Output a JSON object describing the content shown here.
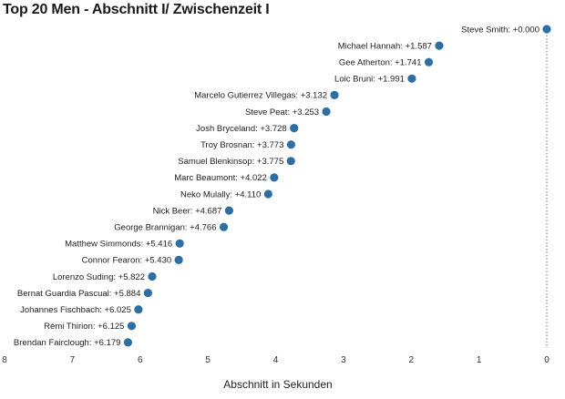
{
  "chart_data": {
    "type": "scatter",
    "title": "Top 20 Men - Abschnitt I/ Zwischenzeit I",
    "xlabel": "Abschnitt in Sekunden",
    "ylabel": "",
    "xlim": [
      8,
      0
    ],
    "xticks": [
      8,
      7,
      6,
      5,
      4,
      3,
      2,
      1,
      0
    ],
    "point_color": "#2c6fa6",
    "points": [
      {
        "name": "Steve Smith",
        "value": 0.0,
        "label": "Steve Smith: +0.000"
      },
      {
        "name": "Michael Hannah",
        "value": 1.587,
        "label": "Michael Hannah: +1.587"
      },
      {
        "name": "Gee Atherton",
        "value": 1.741,
        "label": "Gee Atherton: +1.741"
      },
      {
        "name": "Loic Bruni",
        "value": 1.991,
        "label": "Loic Bruni: +1.991"
      },
      {
        "name": "Marcelo Gutierrez Villegas",
        "value": 3.132,
        "label": "Marcelo Gutierrez Villegas: +3.132"
      },
      {
        "name": "Steve Peat",
        "value": 3.253,
        "label": "Steve Peat: +3.253"
      },
      {
        "name": "Josh Bryceland",
        "value": 3.728,
        "label": "Josh Bryceland: +3.728"
      },
      {
        "name": "Troy Brosnan",
        "value": 3.773,
        "label": "Troy Brosnan: +3.773"
      },
      {
        "name": "Samuel Blenkinsop",
        "value": 3.775,
        "label": "Samuel Blenkinsop: +3.775"
      },
      {
        "name": "Marc Beaumont",
        "value": 4.022,
        "label": "Marc Beaumont: +4.022"
      },
      {
        "name": "Neko Mulally",
        "value": 4.11,
        "label": "Neko Mulally: +4.110"
      },
      {
        "name": "Nick Beer",
        "value": 4.687,
        "label": "Nick Beer: +4.687"
      },
      {
        "name": "George Brannigan",
        "value": 4.766,
        "label": "George Brannigan: +4.766"
      },
      {
        "name": "Matthew Simmonds",
        "value": 5.416,
        "label": "Matthew Simmonds: +5.416"
      },
      {
        "name": "Connor Fearon",
        "value": 5.43,
        "label": "Connor Fearon: +5.430"
      },
      {
        "name": "Lorenzo Suding",
        "value": 5.822,
        "label": "Lorenzo Suding: +5.822"
      },
      {
        "name": "Bernat Guardia Pascual",
        "value": 5.884,
        "label": "Bernat Guardia Pascual: +5.884"
      },
      {
        "name": "Johannes Fischbach",
        "value": 6.025,
        "label": "Johannes Fischbach: +6.025"
      },
      {
        "name": "Rémi Thirion",
        "value": 6.125,
        "label": "Rémi Thirion: +6.125"
      },
      {
        "name": "Brendan Fairclough",
        "value": 6.179,
        "label": "Brendan Fairclough: +6.179"
      }
    ]
  }
}
